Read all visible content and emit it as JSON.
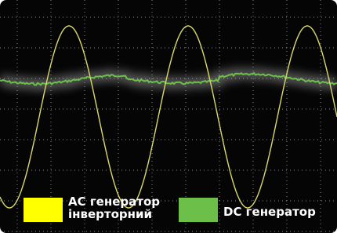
{
  "legend": [
    {
      "label": "AC генератор інверторний",
      "color": "#ffff00"
    },
    {
      "label": "DC генератор",
      "color": "#6cc04a"
    }
  ]
}
